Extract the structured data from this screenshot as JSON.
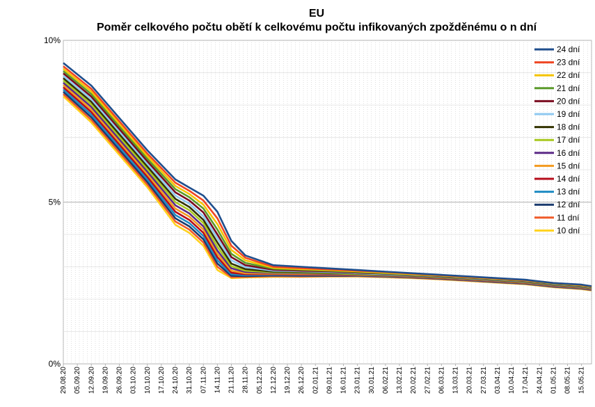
{
  "chart_data": {
    "type": "line",
    "title": "EU",
    "subtitle": "Poměr celkového počtu obětí k celkovému počtu infikovaných zpožděnému o n dní",
    "xlabel": "",
    "ylabel": "",
    "ylim": [
      0,
      10
    ],
    "y_unit": "%",
    "yticks": [
      "0%",
      "5%",
      "10%"
    ],
    "grid": true,
    "legend_position": "top-right",
    "x_tick_labels": [
      "29.08.20",
      "05.09.20",
      "12.09.20",
      "19.09.20",
      "26.09.20",
      "03.10.20",
      "10.10.20",
      "17.10.20",
      "24.10.20",
      "31.10.20",
      "07.11.20",
      "14.11.20",
      "21.11.20",
      "28.11.20",
      "05.12.20",
      "12.12.20",
      "19.12.20",
      "26.12.20",
      "02.01.21",
      "09.01.21",
      "16.01.21",
      "23.01.21",
      "30.01.21",
      "06.02.21",
      "13.02.21",
      "20.02.21",
      "27.02.21",
      "06.03.21",
      "13.03.21",
      "20.03.21",
      "27.03.21",
      "03.04.21",
      "10.04.21",
      "17.04.21",
      "24.04.21",
      "01.05.21",
      "08.05.21",
      "15.05.21"
    ],
    "x_points": [
      "29.08.20",
      "12.09.20",
      "26.09.20",
      "10.10.20",
      "24.10.20",
      "31.10.20",
      "07.11.20",
      "14.11.20",
      "21.11.20",
      "28.11.20",
      "12.12.20",
      "26.12.20",
      "09.01.21",
      "23.01.21",
      "06.02.21",
      "20.02.21",
      "06.03.21",
      "20.03.21",
      "03.04.21",
      "17.04.21",
      "01.05.21",
      "15.05.21",
      "20.05.21"
    ],
    "series": [
      {
        "name": "24 dní",
        "color": "#1f4e8c",
        "values": [
          9.3,
          8.6,
          7.6,
          6.6,
          5.7,
          5.45,
          5.2,
          4.7,
          3.8,
          3.35,
          3.05,
          3.0,
          2.95,
          2.9,
          2.85,
          2.8,
          2.75,
          2.7,
          2.65,
          2.6,
          2.5,
          2.45,
          2.4
        ]
      },
      {
        "name": "23 dní",
        "color": "#ef4623",
        "values": [
          9.2,
          8.5,
          7.5,
          6.5,
          5.6,
          5.35,
          5.05,
          4.5,
          3.65,
          3.28,
          3.0,
          2.96,
          2.92,
          2.88,
          2.84,
          2.79,
          2.74,
          2.69,
          2.64,
          2.59,
          2.5,
          2.44,
          2.4
        ]
      },
      {
        "name": "22 dní",
        "color": "#f5c400",
        "values": [
          9.12,
          8.42,
          7.42,
          6.42,
          5.5,
          5.25,
          4.92,
          4.32,
          3.52,
          3.2,
          2.97,
          2.93,
          2.9,
          2.86,
          2.82,
          2.77,
          2.73,
          2.68,
          2.63,
          2.58,
          2.49,
          2.43,
          2.39
        ]
      },
      {
        "name": "21 dní",
        "color": "#5a9a2a",
        "values": [
          9.05,
          8.34,
          7.34,
          6.34,
          5.4,
          5.15,
          4.8,
          4.15,
          3.4,
          3.12,
          2.94,
          2.91,
          2.88,
          2.84,
          2.8,
          2.76,
          2.72,
          2.67,
          2.62,
          2.57,
          2.48,
          2.42,
          2.38
        ]
      },
      {
        "name": "20 dní",
        "color": "#7a0c20",
        "values": [
          8.98,
          8.26,
          7.26,
          6.26,
          5.3,
          5.05,
          4.68,
          4.0,
          3.3,
          3.05,
          2.91,
          2.88,
          2.86,
          2.82,
          2.79,
          2.75,
          2.71,
          2.66,
          2.61,
          2.56,
          2.47,
          2.41,
          2.37
        ]
      },
      {
        "name": "19 dní",
        "color": "#8ec8f0",
        "values": [
          8.9,
          8.18,
          7.18,
          6.18,
          5.2,
          4.95,
          4.56,
          3.88,
          3.2,
          2.99,
          2.88,
          2.86,
          2.84,
          2.8,
          2.77,
          2.74,
          2.7,
          2.65,
          2.6,
          2.55,
          2.46,
          2.4,
          2.36
        ]
      },
      {
        "name": "18 dní",
        "color": "#333300",
        "values": [
          8.83,
          8.1,
          7.1,
          6.1,
          5.1,
          4.85,
          4.45,
          3.75,
          3.1,
          2.93,
          2.85,
          2.84,
          2.82,
          2.79,
          2.76,
          2.73,
          2.69,
          2.64,
          2.59,
          2.54,
          2.45,
          2.39,
          2.35
        ]
      },
      {
        "name": "17 dní",
        "color": "#a8c81e",
        "values": [
          8.76,
          8.02,
          7.02,
          6.02,
          5.0,
          4.75,
          4.35,
          3.62,
          3.02,
          2.88,
          2.83,
          2.82,
          2.8,
          2.77,
          2.75,
          2.72,
          2.68,
          2.63,
          2.58,
          2.53,
          2.44,
          2.38,
          2.34
        ]
      },
      {
        "name": "16 dní",
        "color": "#5b2a86",
        "values": [
          8.69,
          7.94,
          6.94,
          5.94,
          4.9,
          4.65,
          4.25,
          3.5,
          2.95,
          2.84,
          2.81,
          2.8,
          2.78,
          2.76,
          2.74,
          2.71,
          2.67,
          2.62,
          2.57,
          2.52,
          2.43,
          2.37,
          2.33
        ]
      },
      {
        "name": "15 dní",
        "color": "#f39a1e",
        "values": [
          8.62,
          7.86,
          6.86,
          5.86,
          4.8,
          4.55,
          4.15,
          3.4,
          2.88,
          2.8,
          2.79,
          2.78,
          2.77,
          2.75,
          2.73,
          2.7,
          2.66,
          2.61,
          2.56,
          2.51,
          2.42,
          2.36,
          2.32
        ]
      },
      {
        "name": "14 dní",
        "color": "#b50c1a",
        "values": [
          8.55,
          7.78,
          6.78,
          5.78,
          4.7,
          4.45,
          4.05,
          3.3,
          2.82,
          2.77,
          2.77,
          2.76,
          2.75,
          2.74,
          2.72,
          2.69,
          2.65,
          2.6,
          2.55,
          2.5,
          2.41,
          2.35,
          2.31
        ]
      },
      {
        "name": "13 dní",
        "color": "#1e8bc3",
        "values": [
          8.48,
          7.7,
          6.7,
          5.7,
          4.6,
          4.35,
          3.95,
          3.2,
          2.77,
          2.74,
          2.75,
          2.74,
          2.74,
          2.73,
          2.71,
          2.68,
          2.64,
          2.59,
          2.54,
          2.49,
          2.4,
          2.34,
          2.3
        ]
      },
      {
        "name": "12 dní",
        "color": "#1a3a6e",
        "values": [
          8.41,
          7.62,
          6.62,
          5.62,
          4.5,
          4.25,
          3.85,
          3.1,
          2.72,
          2.71,
          2.73,
          2.72,
          2.72,
          2.72,
          2.7,
          2.67,
          2.63,
          2.58,
          2.53,
          2.48,
          2.39,
          2.33,
          2.29
        ]
      },
      {
        "name": "11 dní",
        "color": "#f05a28",
        "values": [
          8.34,
          7.54,
          6.54,
          5.54,
          4.4,
          4.15,
          3.75,
          3.0,
          2.68,
          2.69,
          2.71,
          2.7,
          2.71,
          2.71,
          2.69,
          2.66,
          2.62,
          2.57,
          2.52,
          2.47,
          2.38,
          2.32,
          2.28
        ]
      },
      {
        "name": "10 dní",
        "color": "#ffd21e",
        "values": [
          8.27,
          7.46,
          6.46,
          5.46,
          4.3,
          4.05,
          3.65,
          2.9,
          2.65,
          2.67,
          2.69,
          2.69,
          2.7,
          2.7,
          2.68,
          2.65,
          2.61,
          2.56,
          2.51,
          2.46,
          2.37,
          2.31,
          2.27
        ]
      }
    ]
  }
}
